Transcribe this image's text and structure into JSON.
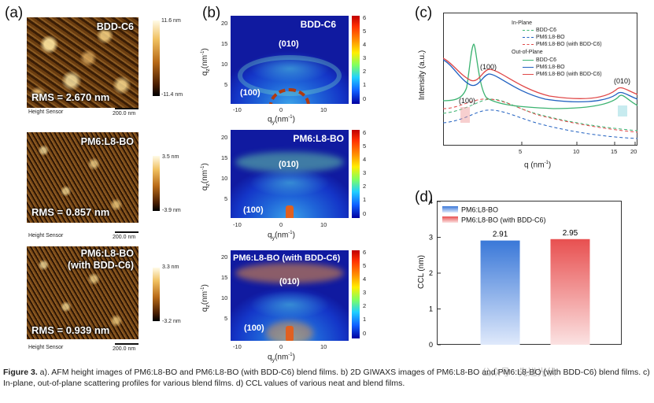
{
  "panels": {
    "a": {
      "letter": "(a)",
      "images": [
        {
          "sample": "BDD-C6",
          "rms": "RMS = 2.670 nm",
          "cbar_max": "11.6 nm",
          "cbar_min": "-11.4 nm",
          "sensor": "Height Sensor",
          "scale": "200.0 nm"
        },
        {
          "sample": "PM6:L8-BO",
          "rms": "RMS = 0.857 nm",
          "cbar_max": "3.5 nm",
          "cbar_min": "-3.9 nm",
          "sensor": "Height Sensor",
          "scale": "200.0 nm"
        },
        {
          "sample": "PM6:L8-BO",
          "sample2": "(with BDD-C6)",
          "rms": "RMS = 0.939 nm",
          "cbar_max": "3.3 nm",
          "cbar_min": "-3.2 nm",
          "sensor": "Height Sensor",
          "scale": "200.0 nm"
        }
      ]
    },
    "b": {
      "letter": "(b)",
      "xlabel": "q",
      "xsub": "y",
      "xunit": "(nm",
      "xunit2": ")",
      "ylabel": "q",
      "ysub": "z",
      "yunit": "(nm",
      "yunit2": ")",
      "exp": "-1",
      "xticks": [
        "-10",
        "0",
        "10"
      ],
      "yticks_top": [
        "20",
        "15",
        "10",
        "5"
      ],
      "yticks": [
        "20",
        "15",
        "10",
        "5"
      ],
      "cbar_ticks": [
        "6",
        "5",
        "4",
        "3",
        "2",
        "1",
        "0"
      ],
      "images": [
        {
          "title": "BDD-C6",
          "peak_top": "(010)",
          "peak_low": "(100)"
        },
        {
          "title": "PM6:L8-BO",
          "peak_top": "(010)",
          "peak_low": "(100)"
        },
        {
          "title": "PM6:L8-BO (with BDD-C6)",
          "peak_top": "(010)",
          "peak_low": "(100)"
        }
      ]
    },
    "c": {
      "letter": "(c)",
      "ylabel": "Intensity (a.u.)",
      "xlabel": "q (nm",
      "xlabel_exp": "-1",
      "xlabel_end": ")",
      "xticks": [
        "5",
        "10",
        "15",
        "20"
      ],
      "legend_inplane_title": "In-Plane",
      "legend_inplane": [
        "BDD-C6",
        "PM6:L8-BO",
        "PM6:L8-BO (with BDD-C6)"
      ],
      "legend_outplane_title": "Out-of-Plane",
      "legend_outplane": [
        "BDD-C6",
        "PM6:L8-BO",
        "PM6:L8-BO (with BDD-C6)"
      ],
      "annot_100a": "(100)",
      "annot_100b": "(100)",
      "annot_010": "(010)",
      "colors": {
        "bdd": "#3cb371",
        "pm6": "#2060c0",
        "with": "#e04848"
      }
    },
    "d": {
      "letter": "(d)",
      "ylabel": "CCL (nm)",
      "yticks": [
        "4",
        "3",
        "2",
        "1",
        "0"
      ],
      "legend": [
        "PM6:L8-BO",
        "PM6:L8-BO (with BDD-C6)"
      ]
    }
  },
  "chart_data": {
    "type": "bar",
    "categories": [
      "PM6:L8-BO",
      "PM6:L8-BO (with BDD-C6)"
    ],
    "values": [
      2.91,
      2.95
    ],
    "labels": [
      "2.91",
      "2.95"
    ],
    "title": "",
    "xlabel": "",
    "ylabel": "CCL (nm)",
    "ylim": [
      0,
      4
    ],
    "legend_position": "top-left",
    "colors": [
      "#3a78d8",
      "#e85050"
    ]
  },
  "caption": {
    "label": "Figure 3.",
    "text": " a). AFM height images of PM6:L8-BO and PM6:L8-BO (with BDD-C6) blend films. b) 2D GIWAXS images of PM6:L8-BO and PM6:L8-BO (with BDD-C6) blend films. c) In-plane, out-of-plane scattering profiles for various blend films. d) CCL values of various neat and blend films."
  },
  "watermark": "公众号 · 先进光伏"
}
